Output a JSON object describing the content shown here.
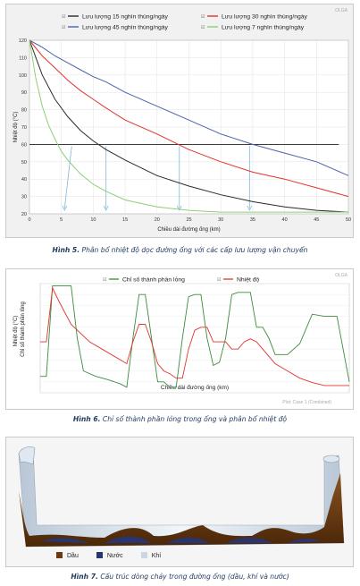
{
  "figures": [
    {
      "caption_label": "Hình 5.",
      "caption_text": "Phân bổ nhiệt độ dọc đường ống với các cấp lưu lượng vận chuyển",
      "watermark": "OLGA"
    },
    {
      "caption_label": "Hình 6.",
      "caption_text": "Chỉ số thành phần lỏng trong ống và phân bổ nhiệt độ",
      "watermark": "OLGA",
      "footer_note": "Plot: Case 1 (Combined)"
    },
    {
      "caption_label": "Hình 7.",
      "caption_text": "Cấu trúc dòng chảy trong đường ống (dầu, khí và nước)",
      "legend": [
        {
          "label": "Dầu",
          "color": "#6b3a12"
        },
        {
          "label": "Nước",
          "color": "#2a3570"
        },
        {
          "label": "Khí",
          "color": "#c8d6e6"
        }
      ]
    }
  ],
  "chart_data": [
    {
      "type": "line",
      "title": "",
      "xlabel": "Chiều dài đường ống (km)",
      "ylabel": "Nhiệt độ (°C)",
      "xlim": [
        0,
        50
      ],
      "ylim": [
        20,
        120
      ],
      "xticks": [
        0,
        5,
        10,
        15,
        20,
        25,
        30,
        35,
        40,
        45,
        50
      ],
      "yticks": [
        20,
        30,
        40,
        50,
        60,
        70,
        80,
        90,
        100,
        110,
        120
      ],
      "reference_line_y": 60,
      "arrow_x": [
        5.5,
        12,
        23.5,
        34.5
      ],
      "series": [
        {
          "name": "Lưu lượng 15 nghìn thùng/ngày",
          "color": "#2a2a2a",
          "x": [
            0,
            2,
            4,
            6,
            8,
            10,
            12,
            15,
            20,
            25,
            30,
            35,
            40,
            45,
            50
          ],
          "y": [
            120,
            100,
            86,
            76,
            68,
            62,
            57,
            51,
            42,
            36,
            31,
            27,
            24,
            22,
            21
          ]
        },
        {
          "name": "Lưu lượng 30 nghìn thùng/ngày",
          "color": "#e0342e",
          "x": [
            0,
            2,
            4,
            6,
            8,
            10,
            12,
            15,
            20,
            25,
            30,
            35,
            40,
            45,
            50
          ],
          "y": [
            120,
            111,
            104,
            97,
            91,
            86,
            81,
            74,
            66,
            57,
            50,
            44,
            40,
            35,
            30
          ]
        },
        {
          "name": "Lưu lượng 45 nghìn thùng/ngày",
          "color": "#4a63ad",
          "x": [
            0,
            2,
            4,
            6,
            8,
            10,
            12,
            15,
            20,
            25,
            30,
            35,
            40,
            45,
            50
          ],
          "y": [
            120,
            116,
            111,
            107,
            103,
            99,
            96,
            90,
            82,
            74,
            66,
            60,
            55,
            50,
            42
          ]
        },
        {
          "name": "Lưu lượng 7 nghìn thùng/ngày",
          "color": "#8fcf74",
          "x": [
            0,
            1,
            2,
            3,
            4,
            5,
            6,
            8,
            10,
            12,
            15,
            20,
            25,
            30,
            35,
            40,
            45,
            50
          ],
          "y": [
            120,
            98,
            82,
            71,
            63,
            56,
            51,
            43,
            37,
            33,
            28,
            24,
            22,
            21,
            21,
            21,
            21,
            21
          ]
        }
      ]
    },
    {
      "type": "line",
      "title": "",
      "xlabel": "Chiều dài đường ống (km)",
      "ylabel_left": "Nhiệt độ (°C)",
      "ylabel_left2": "Chỉ số thành phần lỏng",
      "xlim": [
        0,
        50
      ],
      "series": [
        {
          "name": "Chỉ số thành phần lỏng",
          "color": "#3c8a3c",
          "x": [
            0,
            1,
            2,
            3,
            4,
            5,
            6,
            7,
            9,
            11,
            13,
            14,
            15,
            16,
            17,
            18,
            19,
            20,
            21,
            22,
            23,
            24,
            25,
            26,
            27,
            28,
            29,
            30,
            31,
            32,
            33,
            34,
            35,
            36,
            37,
            38,
            40,
            42,
            44,
            46,
            48,
            50
          ],
          "y": [
            0.15,
            0.15,
            0.98,
            0.98,
            0.98,
            0.98,
            0.5,
            0.2,
            0.15,
            0.12,
            0.08,
            0.05,
            0.5,
            0.9,
            0.9,
            0.5,
            0.1,
            0.1,
            0.05,
            0.05,
            0.5,
            0.88,
            0.9,
            0.9,
            0.5,
            0.25,
            0.28,
            0.5,
            0.9,
            0.92,
            0.92,
            0.92,
            0.6,
            0.6,
            0.5,
            0.35,
            0.35,
            0.45,
            0.72,
            0.7,
            0.7,
            0.1
          ]
        },
        {
          "name": "Nhiệt độ",
          "color": "#e0342e",
          "x": [
            0,
            1,
            2,
            3,
            4,
            5,
            6,
            8,
            10,
            12,
            14,
            15,
            16,
            17,
            18,
            19,
            20,
            21,
            22,
            23,
            24,
            25,
            26,
            27,
            28,
            29,
            30,
            31,
            32,
            33,
            34,
            35,
            36,
            37,
            38,
            40,
            42,
            44,
            46,
            48,
            50
          ],
          "y": [
            60,
            60,
            97,
            88,
            80,
            72,
            68,
            60,
            55,
            50,
            45,
            60,
            72,
            72,
            60,
            45,
            40,
            38,
            35,
            35,
            55,
            68,
            70,
            70,
            60,
            60,
            60,
            55,
            55,
            60,
            62,
            60,
            55,
            50,
            45,
            40,
            35,
            32,
            30,
            30,
            30
          ]
        }
      ]
    }
  ]
}
